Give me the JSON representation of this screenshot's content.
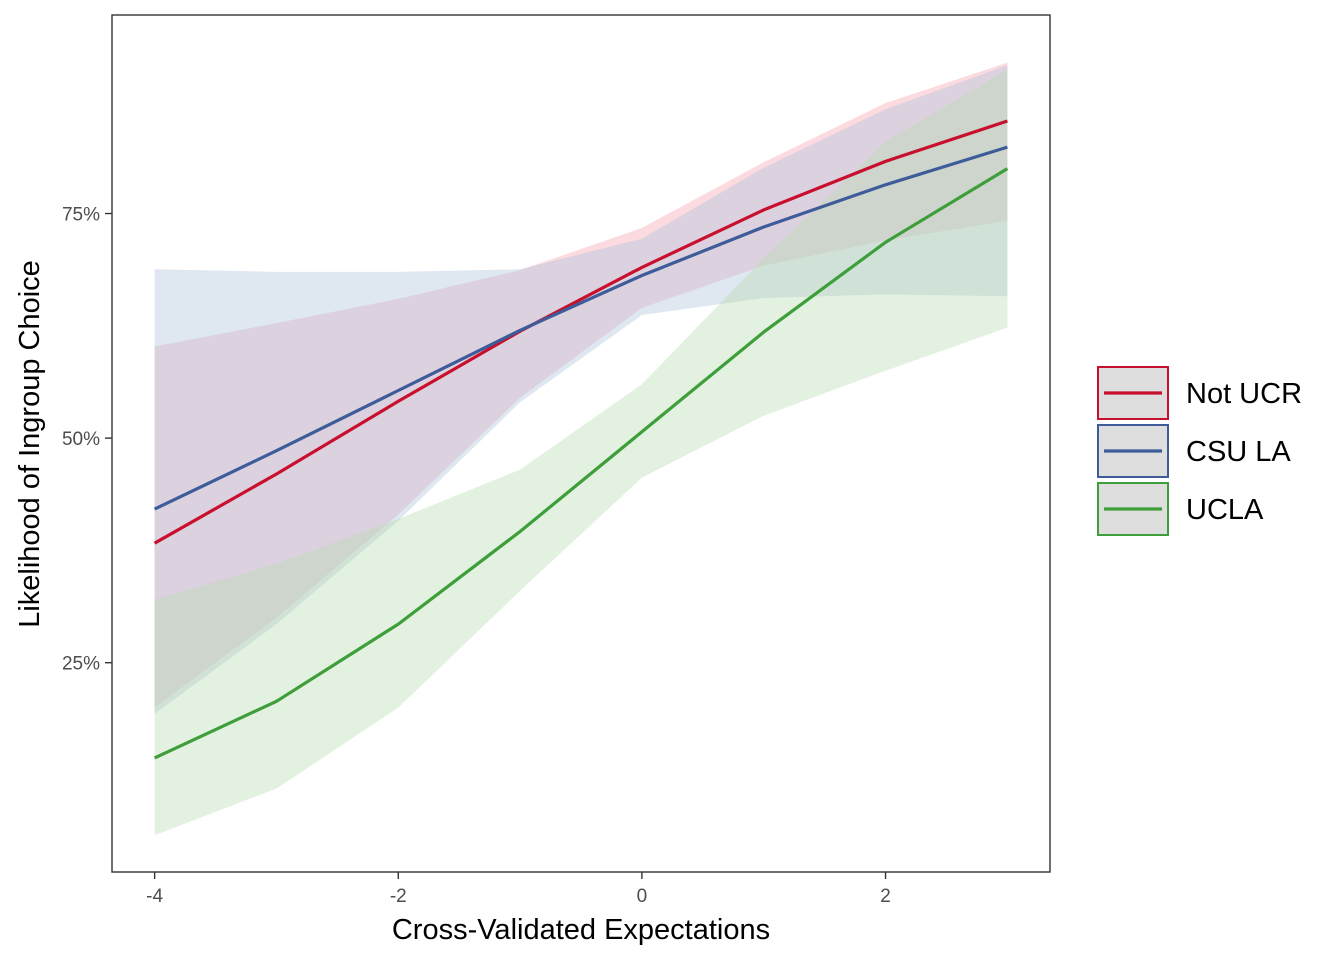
{
  "chart_data": {
    "type": "line",
    "xlabel": "Cross-Validated Expectations",
    "ylabel": "Likelihood of Ingroup Choice",
    "xlim": [
      -4.35,
      3.35
    ],
    "ylim": [
      0.017,
      0.971
    ],
    "x_ticks": [
      {
        "value": -4,
        "label": "-4"
      },
      {
        "value": -2,
        "label": "-2"
      },
      {
        "value": 0,
        "label": "0"
      },
      {
        "value": 2,
        "label": "2"
      }
    ],
    "y_ticks": [
      {
        "value": 0.25,
        "label": "25%"
      },
      {
        "value": 0.5,
        "label": "50%"
      },
      {
        "value": 0.75,
        "label": "75%"
      }
    ],
    "grid": false,
    "legend": {
      "position": "right"
    },
    "x": [
      -4,
      -3,
      -2,
      -1,
      0,
      1,
      2,
      3
    ],
    "series": [
      {
        "name": "Not UCR",
        "color": "#C8102E",
        "fill": "#F4A6AE",
        "values": [
          0.383,
          0.46,
          0.541,
          0.619,
          0.69,
          0.754,
          0.808,
          0.853
        ],
        "lower": [
          0.2,
          0.3,
          0.415,
          0.545,
          0.645,
          0.692,
          0.72,
          0.742
        ],
        "upper": [
          0.602,
          0.628,
          0.655,
          0.687,
          0.734,
          0.807,
          0.873,
          0.918
        ]
      },
      {
        "name": "CSU LA",
        "color": "#3E5C99",
        "fill": "#AEC4DD",
        "values": [
          0.421,
          0.486,
          0.553,
          0.62,
          0.681,
          0.735,
          0.782,
          0.824
        ],
        "lower": [
          0.193,
          0.293,
          0.408,
          0.54,
          0.637,
          0.656,
          0.66,
          0.658
        ],
        "upper": [
          0.688,
          0.685,
          0.685,
          0.688,
          0.722,
          0.801,
          0.866,
          0.915
        ]
      },
      {
        "name": "UCLA",
        "color": "#3D9E3A",
        "fill": "#B9DDB2",
        "values": [
          0.144,
          0.207,
          0.293,
          0.396,
          0.507,
          0.618,
          0.718,
          0.8
        ],
        "lower": [
          0.058,
          0.11,
          0.2,
          0.33,
          0.456,
          0.525,
          0.575,
          0.623
        ],
        "upper": [
          0.32,
          0.36,
          0.41,
          0.465,
          0.56,
          0.7,
          0.83,
          0.91
        ]
      }
    ]
  }
}
